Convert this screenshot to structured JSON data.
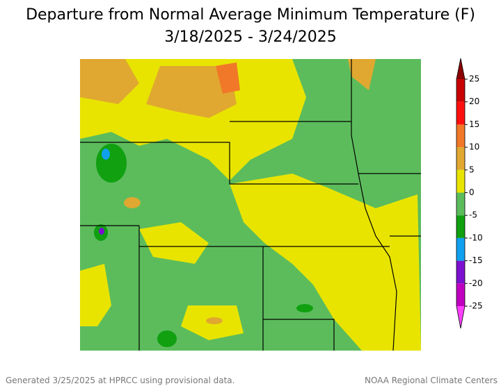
{
  "title": "Departure from Normal Average Minimum Temperature (F)",
  "subtitle": "3/18/2025 - 3/24/2025",
  "legend": {
    "ticks": [
      25,
      20,
      15,
      10,
      5,
      0,
      -5,
      -10,
      -15,
      -20,
      -25
    ],
    "colors": [
      "#8b0000",
      "#c80000",
      "#ff1010",
      "#f07828",
      "#e0a830",
      "#e8e400",
      "#5cbc5c",
      "#10a010",
      "#10a0f0",
      "#7c10d0",
      "#c000c0",
      "#ff40ff"
    ]
  },
  "footer": {
    "left": "Generated 3/25/2025 at HPRCC using provisional data.",
    "right": "NOAA Regional Climate Centers"
  }
}
